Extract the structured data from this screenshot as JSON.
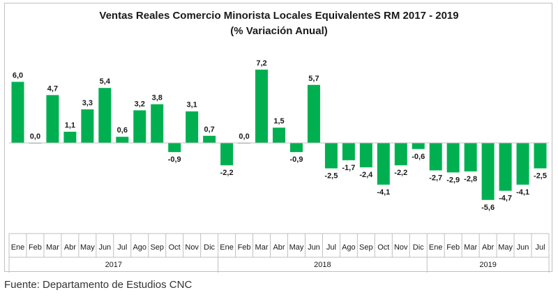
{
  "source": "Fuente: Departamento de Estudios CNC",
  "chart_data": {
    "type": "bar",
    "title": "Ventas Reales Comercio Minorista Locales EquivalenteS  RM 2017 - 2019",
    "subtitle": "(% Variación Anual)",
    "bar_color": "#00b050",
    "axis_color": "#bfbfbf",
    "categories": [
      "Ene",
      "Feb",
      "Mar",
      "Abr",
      "May",
      "Jun",
      "Jul",
      "Ago",
      "Sep",
      "Oct",
      "Nov",
      "Dic",
      "Ene",
      "Feb",
      "Mar",
      "Abr",
      "May",
      "Jun",
      "Jul",
      "Ago",
      "Sep",
      "Oct",
      "Nov",
      "Dic",
      "Ene",
      "Feb",
      "Mar",
      "Abr",
      "May",
      "Jun",
      "Jul"
    ],
    "values": [
      6.0,
      0.0,
      4.7,
      1.1,
      3.3,
      5.4,
      0.6,
      3.2,
      3.8,
      -0.9,
      3.1,
      0.7,
      -2.2,
      0.0,
      7.2,
      1.5,
      -0.9,
      5.7,
      -2.5,
      -1.7,
      -2.4,
      -4.1,
      -2.2,
      -0.6,
      -2.7,
      -2.9,
      -2.8,
      -5.6,
      -4.7,
      -4.1,
      -2.5
    ],
    "data_labels": [
      "6,0",
      "0,0",
      "4,7",
      "1,1",
      "3,3",
      "5,4",
      "0,6",
      "3,2",
      "3,8",
      "-0,9",
      "3,1",
      "0,7",
      "-2,2",
      "0,0",
      "7,2",
      "1,5",
      "-0,9",
      "5,7",
      "-2,5",
      "-1,7",
      "-2,4",
      "-4,1",
      "-2,2",
      "-0,6",
      "-2,7",
      "-2,9",
      "-2,8",
      "-5,6",
      "-4,7",
      "-4,1",
      "-2,5"
    ],
    "groups": [
      {
        "label": "2017",
        "count": 12
      },
      {
        "label": "2018",
        "count": 12
      },
      {
        "label": "2019",
        "count": 7
      }
    ],
    "xlabel": "",
    "ylabel": "",
    "ylim": [
      -7,
      8
    ],
    "grid": false,
    "legend": "none"
  }
}
